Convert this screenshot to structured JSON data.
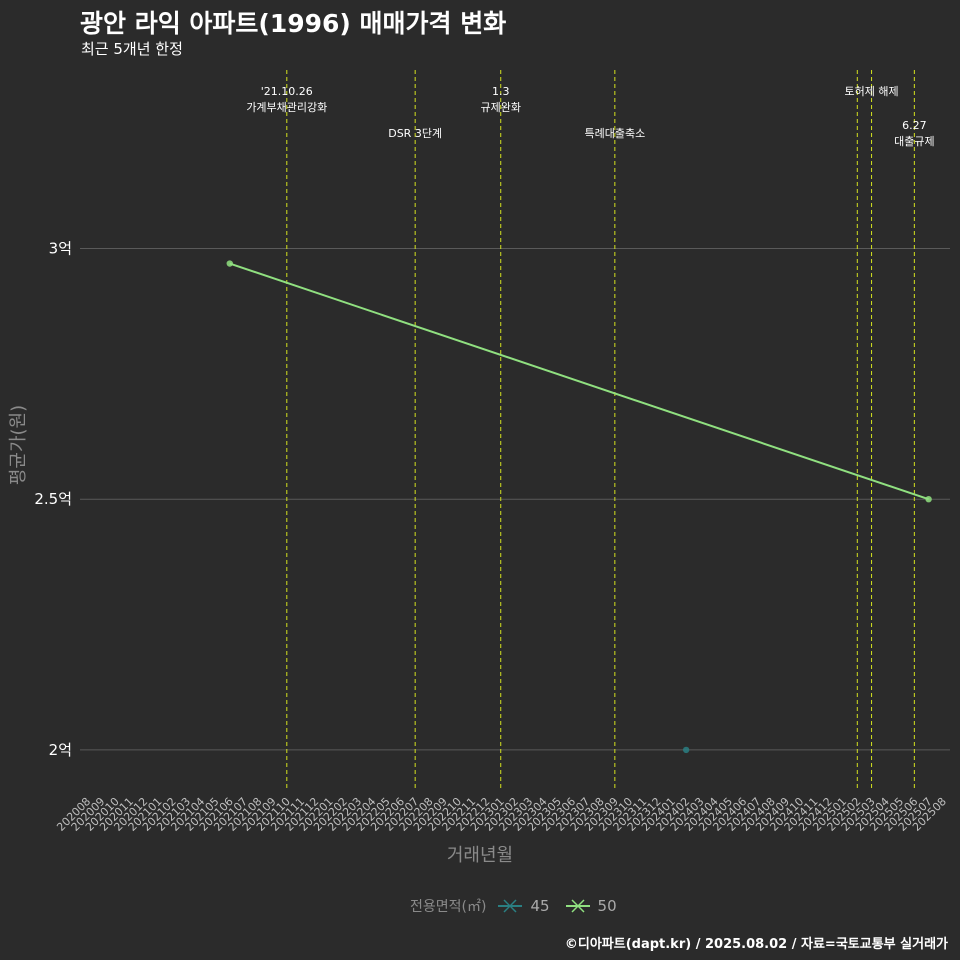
{
  "title": "광안 라익 아파트(1996) 매매가격 변화",
  "subtitle": "최근 5개년 한정",
  "caption": "©디아파트(dapt.kr) / 2025.08.02 / 자료=국토교통부 실거래가",
  "colors": {
    "background": "#2b2b2b",
    "grid": "#5a5a5a",
    "policy_line": "#d4e21f",
    "series_45": "#2a7f82",
    "series_50": "#90e080"
  },
  "legend": {
    "title": "전용면적(㎡)",
    "items": [
      {
        "label": "45",
        "color": "#2a7f82"
      },
      {
        "label": "50",
        "color": "#90e080"
      }
    ]
  },
  "chart_data": {
    "type": "line",
    "title": "광안 라익 아파트(1996) 매매가격 변화",
    "xlabel": "거래년월",
    "ylabel": "평균가(원)",
    "categories": [
      "202008",
      "202009",
      "202010",
      "202011",
      "202012",
      "202101",
      "202102",
      "202103",
      "202104",
      "202105",
      "202106",
      "202107",
      "202108",
      "202109",
      "202110",
      "202111",
      "202112",
      "202201",
      "202202",
      "202203",
      "202204",
      "202205",
      "202206",
      "202207",
      "202208",
      "202209",
      "202210",
      "202211",
      "202212",
      "202301",
      "202302",
      "202303",
      "202304",
      "202305",
      "202306",
      "202307",
      "202308",
      "202309",
      "202310",
      "202311",
      "202312",
      "202401",
      "202402",
      "202403",
      "202404",
      "202405",
      "202406",
      "202407",
      "202408",
      "202409",
      "202410",
      "202411",
      "202412",
      "202501",
      "202502",
      "202503",
      "202504",
      "202505",
      "202506",
      "202507",
      "202508"
    ],
    "y_ticks": [
      {
        "value": 2.0,
        "label": "2억"
      },
      {
        "value": 2.5,
        "label": "2.5억"
      },
      {
        "value": 3.0,
        "label": "3억"
      }
    ],
    "ylim": [
      1.92,
      3.36
    ],
    "series": [
      {
        "name": "45",
        "color": "#2a7f82",
        "points": [
          {
            "x": "202402",
            "y": 2.0
          }
        ]
      },
      {
        "name": "50",
        "color": "#90e080",
        "points": [
          {
            "x": "202106",
            "y": 2.97
          },
          {
            "x": "202507",
            "y": 2.5
          }
        ]
      }
    ],
    "policy_events": [
      {
        "x": "202110",
        "lines": [
          "'21.10.26",
          "가계부채관리강화"
        ],
        "row": 1
      },
      {
        "x": "202207",
        "lines": [
          "DSR 3단계"
        ],
        "row": 2
      },
      {
        "x": "202301",
        "lines": [
          "1.3",
          "규제완화"
        ],
        "row": 1
      },
      {
        "x": "202309",
        "lines": [
          "특례대출축소"
        ],
        "row": 2
      },
      {
        "x": "202502",
        "lines": [],
        "row": 1
      },
      {
        "x": "202503",
        "lines": [
          "토허제 해제"
        ],
        "row": 1
      },
      {
        "x": "202506",
        "lines": [
          "6.27",
          "대출규제"
        ],
        "row": 2
      }
    ]
  }
}
